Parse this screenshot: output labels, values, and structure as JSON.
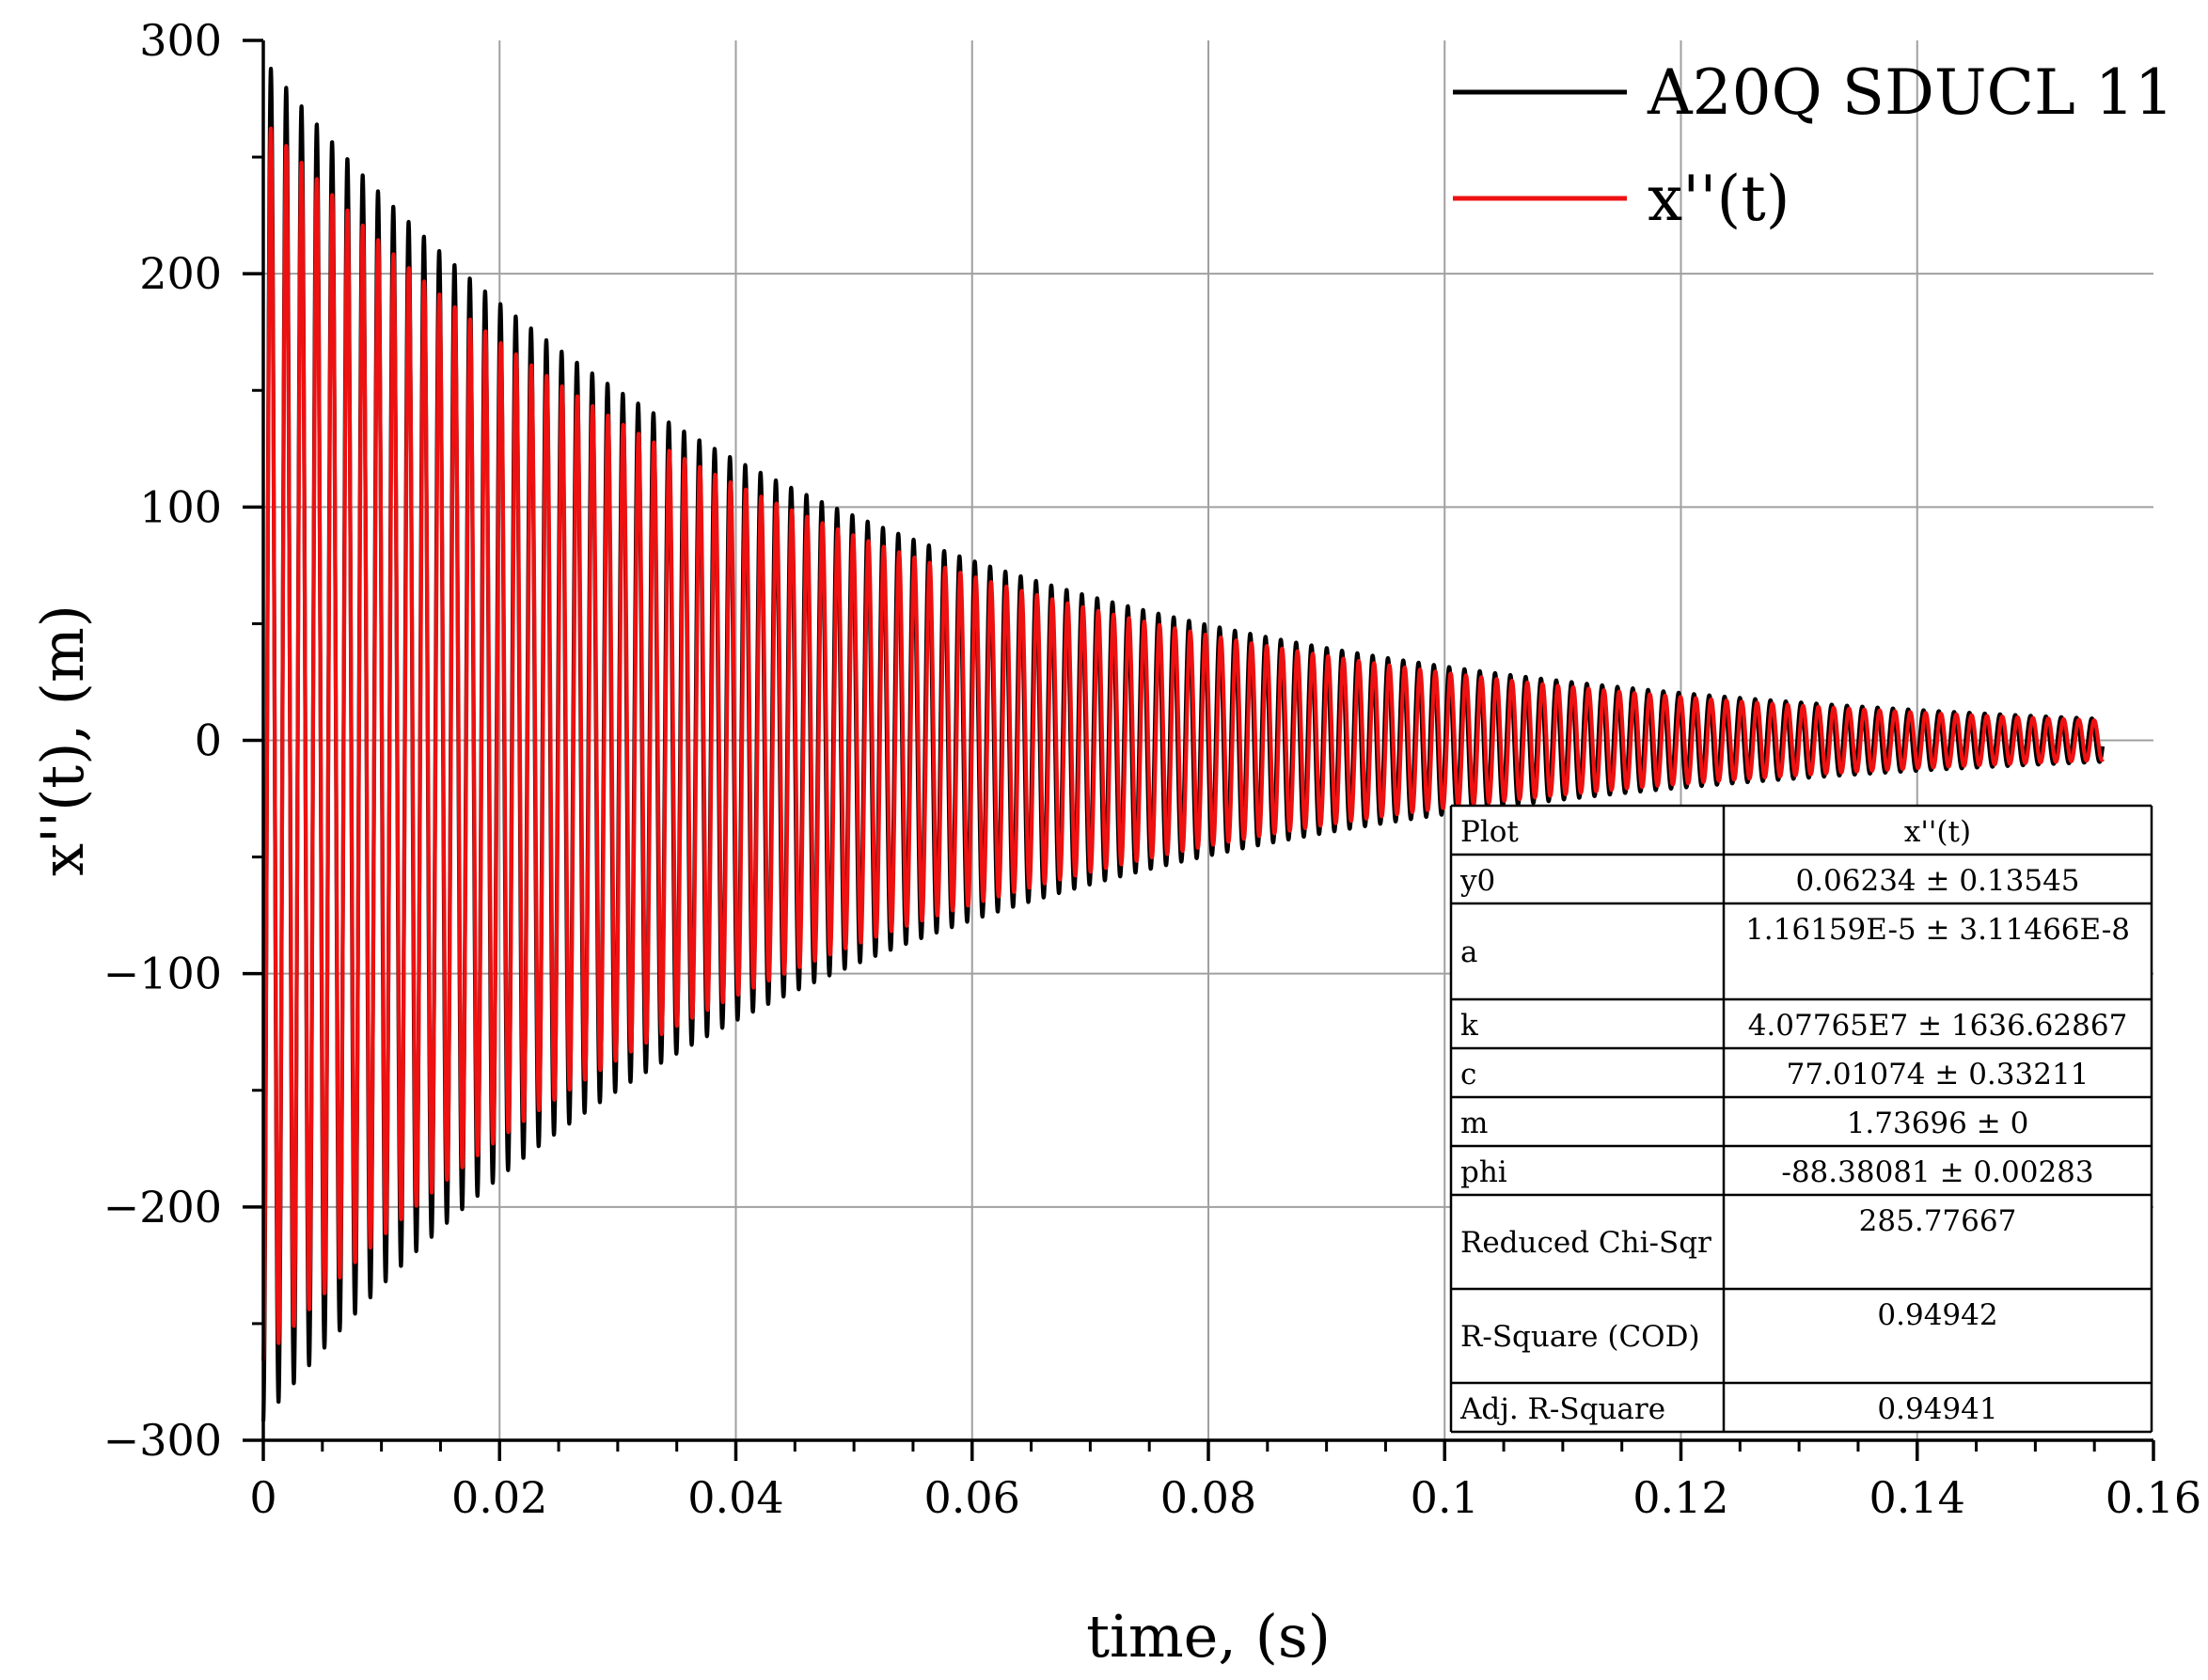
{
  "chart_data": {
    "type": "line",
    "title": "",
    "xlabel": "time, (s)",
    "ylabel": "x''(t), (m)",
    "xlim": [
      0,
      0.16
    ],
    "ylim": [
      -300,
      300
    ],
    "x_ticks": [
      0,
      0.02,
      0.04,
      0.06,
      0.08,
      0.1,
      0.12,
      0.14,
      0.16
    ],
    "x_tick_labels": [
      "0",
      "0.02",
      "0.04",
      "0.06",
      "0.08",
      "0.1",
      "0.12",
      "0.14",
      "0.16"
    ],
    "y_ticks": [
      300,
      200,
      100,
      0,
      -100,
      -200,
      -300
    ],
    "y_tick_labels": [
      "300",
      "200",
      "100",
      "0",
      "−100",
      "−200",
      "−300"
    ],
    "grid": true,
    "legend_position": "top-right",
    "series": [
      {
        "name": "A20Q SDUCL 11",
        "color": "#000000",
        "model": "damped-sine",
        "amplitude": 292,
        "decay_rate": 22.2,
        "frequency_hz": 772,
        "phase_deg": -88.4,
        "x_range": [
          0,
          0.1557
        ]
      },
      {
        "name": "x''(t)",
        "color": "#ee1111",
        "model": "damped-sine",
        "amplitude": 266,
        "decay_rate": 22.17,
        "frequency_hz": 771,
        "phase_deg": -88.38081,
        "x_range": [
          0,
          0.1557
        ]
      }
    ],
    "fit_table": {
      "header": [
        "Plot",
        "x''(t)"
      ],
      "rows": [
        [
          "y0",
          "0.06234 ± 0.13545"
        ],
        [
          "a",
          "1.16159E-5 ± 3.11466E-8"
        ],
        [
          "k",
          "4.07765E7 ± 1636.62867"
        ],
        [
          "c",
          "77.01074 ± 0.33211"
        ],
        [
          "m",
          "1.73696 ± 0"
        ],
        [
          "phi",
          "-88.38081 ± 0.00283"
        ],
        [
          "Reduced Chi-Sqr",
          "285.77667"
        ],
        [
          "R-Square (COD)",
          "0.94942"
        ],
        [
          "Adj. R-Square",
          "0.94941"
        ]
      ]
    }
  }
}
